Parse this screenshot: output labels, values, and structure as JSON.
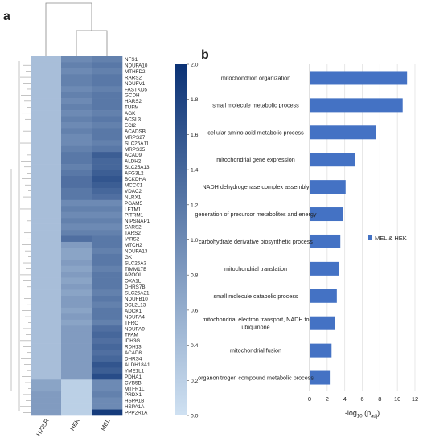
{
  "panel_a_label": "a",
  "panel_b_label": "b",
  "chart_data": [
    {
      "type": "heatmap",
      "columns": [
        "H295R",
        "HEK",
        "MEL"
      ],
      "rows": [
        "NFS1",
        "NDUFA10",
        "MTHFD2",
        "RARS2",
        "NDUFV1",
        "FASTKD5",
        "GCDH",
        "HARS2",
        "TUFM",
        "AGK",
        "ACSL3",
        "ECI2",
        "ACADSB",
        "MRPS27",
        "SLC25A11",
        "MRPS35",
        "ACAD9",
        "ALDH2",
        "SLC25A13",
        "AFG3L2",
        "BCKDHA",
        "MCCC1",
        "VDAC2",
        "NLRX1",
        "PGAM5",
        "LETM1",
        "PITRM1",
        "NIPSNAP1",
        "SARS2",
        "TARS2",
        "IARS2",
        "MTCH2",
        "NDUFA13",
        "GK",
        "SLC25A3",
        "TIMM17B",
        "APOOL",
        "OXA1L",
        "DHRS7B",
        "SLC25A21",
        "NDUFB10",
        "BCL2L13",
        "ADCK1",
        "NDUFA4",
        "TFRC",
        "NDUFA9",
        "TFAM",
        "IDH3G",
        "RDH13",
        "ACAD8",
        "DHRS4",
        "ALDH18A1",
        "YME1L1",
        "PDHA1",
        "CYB5B",
        "MTFR1L",
        "PRDX1",
        "HSPA1B",
        "HSPA1A",
        "PPP2R1A"
      ],
      "values": [
        [
          0.4,
          1.0,
          1.1
        ],
        [
          0.4,
          1.1,
          1.2
        ],
        [
          0.4,
          1.0,
          1.1
        ],
        [
          0.4,
          1.1,
          1.2
        ],
        [
          0.4,
          1.1,
          1.2
        ],
        [
          0.4,
          1.0,
          1.1
        ],
        [
          0.4,
          1.1,
          1.2
        ],
        [
          0.4,
          1.0,
          1.2
        ],
        [
          0.4,
          1.1,
          1.2
        ],
        [
          0.4,
          1.0,
          1.1
        ],
        [
          0.4,
          1.1,
          1.2
        ],
        [
          0.4,
          1.0,
          1.1
        ],
        [
          0.4,
          1.1,
          1.2
        ],
        [
          0.4,
          1.0,
          1.2
        ],
        [
          0.4,
          1.0,
          1.1
        ],
        [
          0.4,
          1.1,
          1.2
        ],
        [
          0.4,
          1.2,
          1.5
        ],
        [
          0.4,
          1.2,
          1.4
        ],
        [
          0.4,
          1.1,
          1.4
        ],
        [
          0.4,
          1.2,
          1.5
        ],
        [
          0.4,
          1.3,
          1.6
        ],
        [
          0.4,
          1.3,
          1.5
        ],
        [
          0.4,
          1.2,
          1.4
        ],
        [
          0.4,
          1.2,
          1.3
        ],
        [
          0.4,
          1.0,
          1.0
        ],
        [
          0.4,
          1.1,
          1.1
        ],
        [
          0.4,
          1.0,
          1.0
        ],
        [
          0.4,
          1.1,
          1.1
        ],
        [
          0.4,
          1.0,
          1.0
        ],
        [
          0.4,
          1.1,
          1.1
        ],
        [
          0.4,
          1.3,
          1.2
        ],
        [
          0.4,
          0.8,
          1.2
        ],
        [
          0.4,
          0.7,
          1.1
        ],
        [
          0.4,
          0.7,
          1.2
        ],
        [
          0.4,
          0.8,
          1.2
        ],
        [
          0.4,
          0.7,
          1.1
        ],
        [
          0.4,
          0.8,
          1.2
        ],
        [
          0.4,
          0.7,
          1.2
        ],
        [
          0.4,
          0.8,
          1.2
        ],
        [
          0.4,
          0.7,
          1.1
        ],
        [
          0.4,
          0.8,
          1.2
        ],
        [
          0.4,
          0.8,
          1.1
        ],
        [
          0.4,
          0.7,
          1.2
        ],
        [
          0.4,
          0.8,
          1.2
        ],
        [
          0.4,
          0.7,
          1.1
        ],
        [
          0.4,
          0.8,
          1.3
        ],
        [
          0.4,
          0.8,
          1.4
        ],
        [
          0.4,
          0.8,
          1.3
        ],
        [
          0.4,
          0.8,
          1.4
        ],
        [
          0.4,
          0.8,
          1.3
        ],
        [
          0.4,
          0.8,
          1.4
        ],
        [
          0.4,
          0.8,
          1.6
        ],
        [
          0.4,
          0.8,
          1.5
        ],
        [
          0.4,
          0.8,
          1.7
        ],
        [
          0.7,
          0.2,
          1.0
        ],
        [
          0.7,
          0.2,
          1.0
        ],
        [
          0.8,
          0.2,
          1.1
        ],
        [
          0.8,
          0.2,
          1.0
        ],
        [
          0.8,
          0.2,
          1.0
        ],
        [
          0.8,
          0.2,
          1.9
        ]
      ],
      "colorbar": {
        "min": 0.0,
        "max": 2.0,
        "ticks": [
          "0.0",
          "0.2",
          "0.4",
          "0.6",
          "0.8",
          "1.0",
          "1.2",
          "1.4",
          "1.6",
          "1.8",
          "2.0"
        ]
      },
      "colors": {
        "low": "#cfe1f2",
        "high": "#0b3275"
      }
    },
    {
      "type": "bar",
      "orientation": "horizontal",
      "categories": [
        "mitochondrion organization",
        "small molecule metabolic process",
        "cellular amino acid metabolic process",
        "mitochondrial gene expression",
        "NADH dehydrogenase complex assembly",
        "generation of precursor metabolites and energy",
        "carbohydrate derivative biosynthetic process",
        "mitochondrial translation",
        "small molecule catabolic process",
        "mitochondrial electron transport, NADH to ubiquinone",
        "mitochondrial fusion",
        "organonitrogen compound metabolic process"
      ],
      "series": [
        {
          "name": "MEL & HEK",
          "values": [
            11.1,
            10.6,
            7.6,
            5.2,
            4.1,
            3.8,
            3.5,
            3.3,
            3.1,
            2.9,
            2.5,
            2.3
          ],
          "color": "#4472c4"
        }
      ],
      "xlim": [
        0,
        12
      ],
      "xticks": [
        "0",
        "2",
        "4",
        "6",
        "8",
        "10",
        "12"
      ],
      "xlabel_main": "-log",
      "xlabel_sub": "10",
      "xlabel_paren_open": " (p",
      "xlabel_paren_sub": "adj",
      "xlabel_paren_close": ")",
      "grid": true,
      "legend_position": "right"
    }
  ]
}
